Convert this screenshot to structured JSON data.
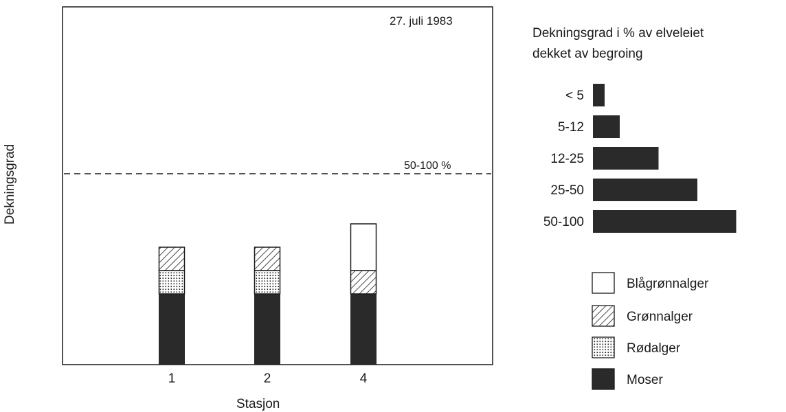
{
  "chart_data": {
    "type": "bar",
    "stacked": true,
    "date": "27. juli 1983",
    "xlabel": "Stasjon",
    "ylabel": "Dekningsgrad",
    "categories": [
      "1",
      "2",
      "4"
    ],
    "series": [
      {
        "name": "Moser",
        "pattern": "solid-dark",
        "values": [
          3,
          3,
          3
        ]
      },
      {
        "name": "Rødalger",
        "pattern": "dotted",
        "values": [
          1,
          1,
          0
        ]
      },
      {
        "name": "Grønnalger",
        "pattern": "hatched",
        "values": [
          1,
          1,
          1
        ]
      },
      {
        "name": "Blågrønnalger",
        "pattern": "white",
        "values": [
          0,
          0,
          2
        ]
      }
    ],
    "level_scale": [
      {
        "level": 1,
        "range": "<5"
      },
      {
        "level": 2,
        "range": "5-12"
      },
      {
        "level": 3,
        "range": "12-25"
      },
      {
        "level": 4,
        "range": "25-50"
      },
      {
        "level": 5,
        "range": "50-100"
      }
    ],
    "reference_line": {
      "label": "50-100 %",
      "level": 5,
      "style": "dashed"
    },
    "scale_legend": {
      "title_line1": "Dekningsgrad i % av elveleiet",
      "title_line2": "dekket av begroing",
      "items": [
        {
          "label": "< 5",
          "level": 1
        },
        {
          "label": "5-12",
          "level": 2
        },
        {
          "label": "12-25",
          "level": 3
        },
        {
          "label": "25-50",
          "level": 4
        },
        {
          "label": "50-100",
          "level": 5
        }
      ]
    },
    "legend_order": [
      "Blågrønnalger",
      "Grønnalger",
      "Rødalger",
      "Moser"
    ],
    "legend_placement": "right",
    "grid": false,
    "colors": {
      "dark": "#2a2a2a",
      "ink": "#1a1a1a",
      "paper": "#ffffff"
    }
  }
}
